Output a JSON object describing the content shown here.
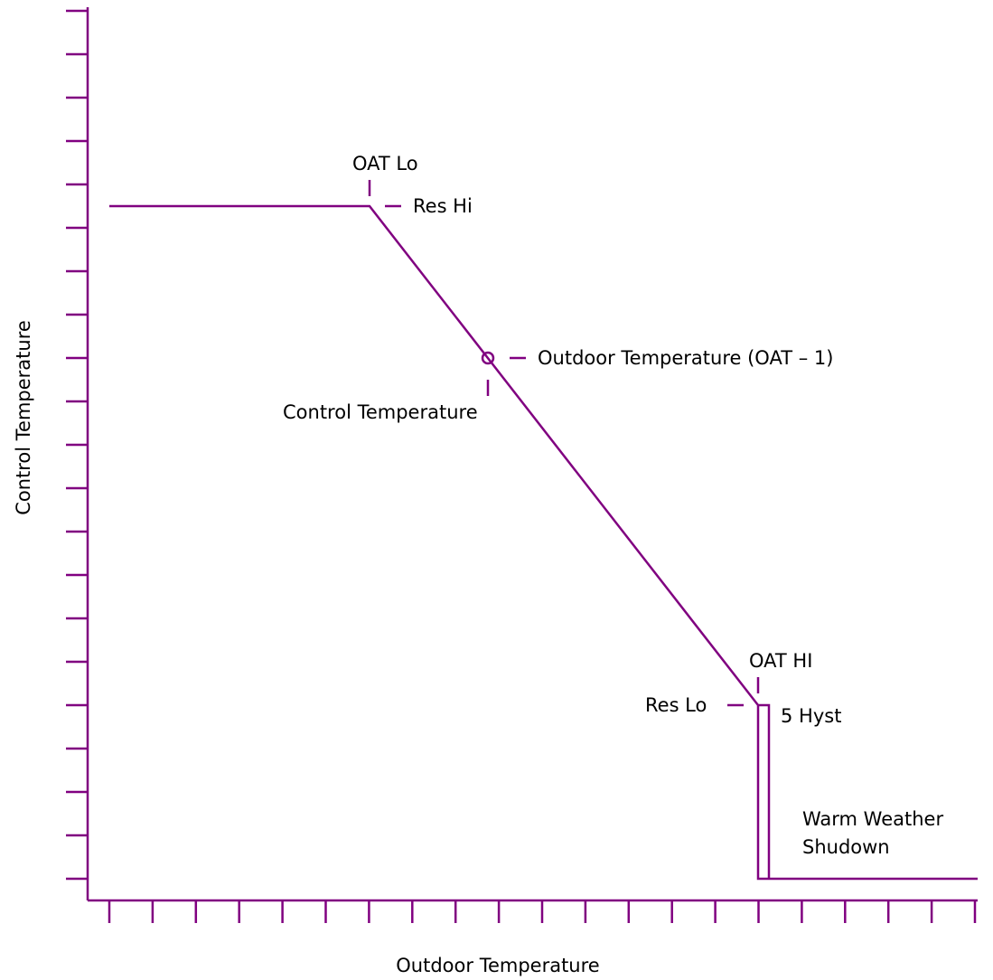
{
  "axes": {
    "x_label": "Outdoor Temperature",
    "y_label": "Control Temperature"
  },
  "labels": {
    "oat_lo": "OAT Lo",
    "res_hi": "Res Hi",
    "outdoor_temp_point": "Outdoor Temperature (OAT – 1)",
    "control_temp_point": "Control Temperature",
    "oat_hi": "OAT HI",
    "res_lo": "Res Lo",
    "hysteresis": "5 Hyst",
    "warm_weather_line1": "Warm Weather",
    "warm_weather_line2": "Shudown"
  },
  "colors": {
    "line": "#800080",
    "text": "#000000"
  }
}
